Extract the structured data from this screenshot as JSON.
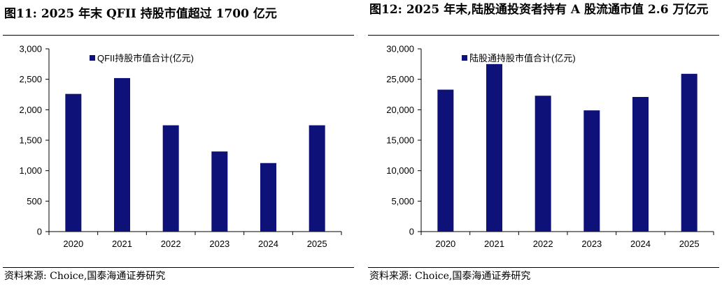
{
  "colors": {
    "bar": "#0d1178",
    "axis": "#000000"
  },
  "charts": [
    {
      "title": "图11:  2025 年末 QFII 持股市值超过 1700 亿元",
      "source": "资料来源:  Choice,国泰海通证券研究",
      "chart_data": {
        "type": "bar",
        "categories": [
          "2020",
          "2021",
          "2022",
          "2023",
          "2024",
          "2025"
        ],
        "series": [
          {
            "name": "QFII持股市值合计(亿元)",
            "values": [
              2260,
              2520,
              1745,
              1315,
              1125,
              1745
            ]
          }
        ],
        "ylim": [
          0,
          3000
        ],
        "yticks": [
          "0",
          "500",
          "1,000",
          "1,500",
          "2,000",
          "2,500",
          "3,000"
        ],
        "legend_position": "top-left",
        "grid": false
      }
    },
    {
      "title": "图12:  2025 年末,陆股通投资者持有 A 股流通市值 2.6 万亿元",
      "source": "资料来源:  Choice,国泰海通证券研究",
      "chart_data": {
        "type": "bar",
        "categories": [
          "2020",
          "2021",
          "2022",
          "2023",
          "2024",
          "2025"
        ],
        "series": [
          {
            "name": "陆股通持股市值合计(亿元)",
            "values": [
              23300,
              27500,
              22300,
              19900,
              22100,
              25900
            ]
          }
        ],
        "ylim": [
          0,
          30000
        ],
        "yticks": [
          "0",
          "5,000",
          "10,000",
          "15,000",
          "20,000",
          "25,000",
          "30,000"
        ],
        "legend_position": "top-left",
        "grid": false
      }
    }
  ]
}
